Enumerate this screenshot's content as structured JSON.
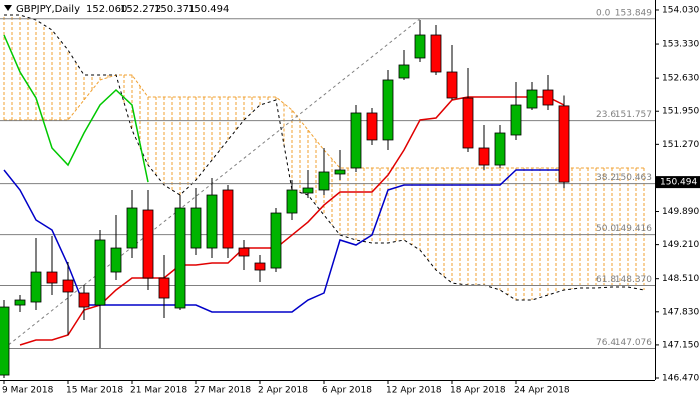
{
  "chart_data": {
    "type": "candlestick",
    "symbol": "GBPJPY,Daily",
    "header_values": [
      "152.060",
      "152.272",
      "150.371",
      "150.494"
    ],
    "categories": [
      "9 Mar 2018",
      null,
      null,
      null,
      "15 Mar 2018",
      null,
      null,
      null,
      "21 Mar 2018",
      null,
      null,
      null,
      "27 Mar 2018",
      null,
      null,
      null,
      "2 Apr 2018",
      null,
      null,
      null,
      "6 Apr 2018",
      null,
      null,
      null,
      "12 Apr 2018",
      null,
      null,
      null,
      "18 Apr 2018",
      null,
      null,
      null,
      "24 Apr 2018",
      null,
      null,
      null,
      null,
      null,
      null,
      null,
      null
    ],
    "open": [
      146.531,
      147.969,
      148.031,
      148.647,
      148.483,
      148.216,
      147.969,
      148.647,
      149.14,
      149.921,
      148.524,
      147.908,
      149.14,
      149.14,
      150.332,
      149.14,
      148.832,
      148.729,
      149.859,
      150.27,
      150.332,
      150.661,
      150.784,
      151.914,
      151.36,
      152.633,
      153.044,
      153.516,
      152.756,
      152.222,
      151.195,
      150.845,
      151.462,
      152.016,
      152.386,
      152.06,
      null,
      null,
      null,
      null,
      null
    ],
    "high": [
      148.072,
      148.175,
      149.346,
      149.387,
      148.853,
      148.38,
      149.51,
      149.818,
      150.332,
      150.332,
      148.997,
      150.229,
      150.373,
      150.578,
      150.435,
      149.305,
      148.997,
      149.962,
      150.537,
      150.743,
      151.195,
      151.154,
      152.078,
      152.016,
      152.797,
      153.208,
      153.824,
      153.721,
      153.311,
      152.838,
      151.667,
      151.667,
      152.551,
      152.551,
      152.694,
      152.272,
      null,
      null,
      null,
      null,
      null
    ],
    "low": [
      146.47,
      147.826,
      147.867,
      148.175,
      147.353,
      147.661,
      147.086,
      148.483,
      148.935,
      148.278,
      147.702,
      147.867,
      148.997,
      148.935,
      148.935,
      148.688,
      148.442,
      148.647,
      149.716,
      150.168,
      150.229,
      150.537,
      150.702,
      151.256,
      151.154,
      152.592,
      152.961,
      152.694,
      152.181,
      151.113,
      150.743,
      150.784,
      151.36,
      151.975,
      151.975,
      150.371,
      null,
      null,
      null,
      null,
      null
    ],
    "close": [
      147.928,
      148.072,
      148.647,
      148.421,
      148.237,
      147.928,
      149.305,
      149.14,
      149.962,
      148.524,
      148.113,
      149.962,
      149.962,
      150.229,
      149.14,
      148.976,
      148.688,
      149.859,
      150.332,
      150.373,
      150.702,
      150.743,
      151.914,
      151.36,
      152.592,
      152.9,
      153.516,
      152.756,
      152.222,
      151.195,
      150.845,
      151.503,
      152.078,
      152.386,
      152.078,
      150.494,
      null,
      null,
      null,
      null,
      null
    ],
    "up_color": "#00b400",
    "down_color": "#ff0000",
    "lines": [
      {
        "color": "#e00000",
        "values": [
          null,
          147.148,
          147.251,
          147.251,
          147.353,
          147.867,
          147.969,
          148.278,
          148.524,
          148.524,
          148.524,
          148.791,
          148.791,
          148.832,
          148.832,
          149.14,
          149.14,
          149.14,
          149.407,
          149.674,
          150.022,
          150.291,
          150.291,
          150.291,
          150.64,
          151.154,
          151.77,
          151.811,
          152.181,
          152.242,
          152.242,
          152.242,
          152.242,
          152.242,
          152.242,
          152.078,
          null,
          null,
          null,
          null,
          null
        ]
      },
      {
        "color": "#0000c8",
        "values": [
          150.743,
          150.332,
          149.716,
          149.51,
          148.791,
          147.969,
          147.969,
          147.969,
          147.969,
          147.969,
          147.969,
          147.969,
          147.969,
          147.826,
          147.826,
          147.826,
          147.826,
          147.826,
          147.826,
          148.072,
          148.216,
          149.305,
          149.202,
          149.407,
          150.332,
          150.435,
          150.435,
          150.435,
          150.435,
          150.435,
          150.435,
          150.435,
          150.743,
          150.743,
          150.743,
          150.743,
          null,
          null,
          null,
          null,
          null
        ]
      },
      {
        "color": "#00c800",
        "values": [
          153.516,
          152.756,
          152.222,
          151.195,
          150.845,
          151.503,
          152.078,
          152.386,
          152.078,
          150.494,
          null,
          null,
          null,
          null,
          null,
          null,
          null,
          null,
          null,
          null,
          null,
          null,
          null,
          null,
          null,
          null,
          null,
          null,
          null,
          null,
          null,
          null,
          null,
          null,
          null,
          null,
          null,
          null,
          null,
          null,
          null
        ]
      }
    ],
    "cloud": {
      "color": "#f0a030",
      "edge_color": "#000000",
      "span_a": [
        151.77,
        151.77,
        151.77,
        151.77,
        151.77,
        152.181,
        152.592,
        152.694,
        152.694,
        152.242,
        152.242,
        152.242,
        152.242,
        152.242,
        152.242,
        152.242,
        152.242,
        152.242,
        151.975,
        151.565,
        151.154,
        150.784,
        150.784,
        150.784,
        150.784,
        150.784,
        150.784,
        150.784,
        150.784,
        150.784,
        150.784,
        150.784,
        150.784,
        150.784,
        150.784,
        150.784,
        150.784,
        150.784,
        150.784,
        150.784,
        150.784
      ],
      "span_b": [
        153.927,
        153.927,
        153.824,
        153.619,
        153.208,
        152.694,
        152.694,
        152.694,
        151.565,
        150.845,
        150.435,
        150.229,
        150.537,
        150.948,
        151.359,
        151.77,
        152.078,
        152.181,
        150.332,
        150.229,
        149.818,
        149.407,
        149.305,
        149.243,
        149.243,
        149.305,
        149.099,
        148.688,
        148.421,
        148.38,
        148.38,
        148.278,
        148.072,
        148.072,
        148.175,
        148.278,
        148.319,
        148.319,
        148.339,
        148.339,
        148.278
      ]
    },
    "fibo": {
      "color": "#808080",
      "ratios": [
        "0.0",
        23.6,
        38.2,
        "50.0",
        61.8,
        76.4
      ],
      "levels": [
        153.849,
        151.757,
        150.463,
        149.416,
        148.37,
        147.076
      ],
      "level_labels": [
        "153.849",
        "151.757",
        "150.463",
        "149.416",
        "148.370",
        "147.076"
      ]
    },
    "current_price": 150.494,
    "ylim": [
      146.429,
      154.235
    ],
    "yticks": [
      {
        "value": 154.03,
        "label": "154.030"
      },
      {
        "value": 153.33,
        "label": "153.330"
      },
      {
        "value": 152.63,
        "label": "152.630"
      },
      {
        "value": 151.95,
        "label": "151.950"
      },
      {
        "value": 151.27,
        "label": "151.270"
      },
      {
        "value": 149.89,
        "label": "149.890"
      },
      {
        "value": 149.21,
        "label": "149.210"
      },
      {
        "value": 148.51,
        "label": "148.510"
      },
      {
        "value": 147.83,
        "label": "147.830"
      },
      {
        "value": 147.15,
        "label": "147.150"
      },
      {
        "value": 146.47,
        "label": "146.470"
      }
    ]
  }
}
